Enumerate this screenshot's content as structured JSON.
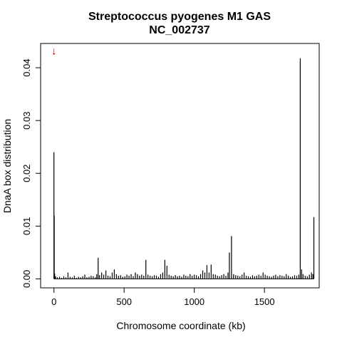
{
  "chart_data": {
    "type": "bar",
    "title": "Streptococcus pyogenes M1 GAS",
    "subtitle": "NC_002737",
    "xlabel": "Chromosome coordinate (kb)",
    "ylabel": "DnaA box distribution",
    "xlim": [
      -95,
      1890
    ],
    "ylim": [
      -0.0017,
      0.0446
    ],
    "xticks": [
      0,
      500,
      1000,
      1500
    ],
    "yticks": [
      0.0,
      0.01,
      0.02,
      0.03,
      0.04
    ],
    "ytick_labels": [
      "0.00",
      "0.01",
      "0.02",
      "0.03",
      "0.04"
    ],
    "grid": false,
    "marker": {
      "symbol": "↓",
      "x_kb": 0,
      "y": 0.0425,
      "color": "#cc0000"
    },
    "series": [
      {
        "color": "#000000",
        "x": [
          0,
          2,
          5,
          12,
          25,
          40,
          55,
          70,
          85,
          100,
          115,
          130,
          145,
          160,
          175,
          190,
          205,
          220,
          235,
          250,
          265,
          280,
          295,
          305,
          315,
          325,
          340,
          355,
          370,
          385,
          400,
          415,
          430,
          445,
          460,
          475,
          490,
          505,
          520,
          535,
          550,
          565,
          580,
          595,
          610,
          625,
          640,
          655,
          670,
          685,
          700,
          715,
          730,
          745,
          760,
          775,
          790,
          805,
          820,
          835,
          850,
          865,
          880,
          895,
          910,
          925,
          940,
          955,
          970,
          985,
          1000,
          1015,
          1030,
          1045,
          1060,
          1075,
          1090,
          1105,
          1120,
          1135,
          1150,
          1165,
          1180,
          1195,
          1210,
          1225,
          1240,
          1250,
          1265,
          1280,
          1295,
          1310,
          1325,
          1340,
          1355,
          1370,
          1385,
          1400,
          1415,
          1430,
          1445,
          1460,
          1475,
          1490,
          1505,
          1520,
          1535,
          1550,
          1565,
          1580,
          1595,
          1610,
          1625,
          1640,
          1655,
          1670,
          1685,
          1700,
          1715,
          1730,
          1745,
          1755,
          1765,
          1775,
          1790,
          1805,
          1820,
          1835,
          1845,
          1852
        ],
        "y": [
          0.024,
          0.012,
          0.001,
          0.0005,
          0.0003,
          0.0004,
          0.0002,
          0.0005,
          0.0003,
          0.0012,
          0.0004,
          0.0003,
          0.0006,
          0.0002,
          0.0004,
          0.0003,
          0.0005,
          0.0008,
          0.0003,
          0.0004,
          0.0006,
          0.0005,
          0.0003,
          0.0009,
          0.004,
          0.0007,
          0.0012,
          0.0008,
          0.0016,
          0.0006,
          0.0005,
          0.0012,
          0.0018,
          0.0009,
          0.0006,
          0.0007,
          0.0004,
          0.0005,
          0.0008,
          0.0006,
          0.0009,
          0.0005,
          0.0012,
          0.0009,
          0.0006,
          0.0008,
          0.0006,
          0.0036,
          0.0008,
          0.0006,
          0.0005,
          0.0007,
          0.0006,
          0.0004,
          0.0009,
          0.0012,
          0.0036,
          0.0025,
          0.0008,
          0.0006,
          0.0005,
          0.0007,
          0.0005,
          0.0006,
          0.0004,
          0.0008,
          0.0006,
          0.0005,
          0.0009,
          0.0006,
          0.0008,
          0.0007,
          0.0005,
          0.0009,
          0.0016,
          0.0012,
          0.0026,
          0.0012,
          0.0027,
          0.0009,
          0.0008,
          0.0006,
          0.0005,
          0.0007,
          0.0009,
          0.0006,
          0.0012,
          0.005,
          0.0081,
          0.0009,
          0.0007,
          0.0006,
          0.0005,
          0.0008,
          0.0012,
          0.0006,
          0.0005,
          0.0004,
          0.0007,
          0.0005,
          0.0006,
          0.0008,
          0.0006,
          0.0012,
          0.0008,
          0.0006,
          0.0005,
          0.0004,
          0.0006,
          0.0008,
          0.0005,
          0.0007,
          0.0006,
          0.0005,
          0.0009,
          0.0006,
          0.0004,
          0.0005,
          0.0007,
          0.0006,
          0.0008,
          0.0418,
          0.0018,
          0.0009,
          0.0006,
          0.0005,
          0.0008,
          0.0012,
          0.0009,
          0.0117
        ]
      }
    ]
  }
}
